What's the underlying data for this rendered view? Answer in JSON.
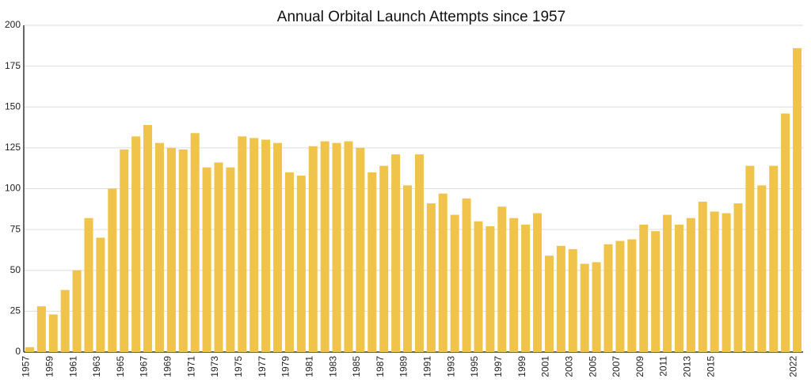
{
  "chart_data": {
    "type": "bar",
    "title": "Annual Orbital Launch Attempts since 1957",
    "categories": [
      "1957",
      null,
      "1959",
      null,
      "1961",
      null,
      "1963",
      null,
      "1965",
      null,
      "1967",
      null,
      "1969",
      null,
      "1971",
      null,
      "1973",
      null,
      "1975",
      null,
      "1977",
      null,
      "1979",
      null,
      "1981",
      null,
      "1983",
      null,
      "1985",
      null,
      "1987",
      null,
      "1989",
      null,
      "1991",
      null,
      "1993",
      null,
      "1995",
      null,
      "1997",
      null,
      "1999",
      null,
      "2001",
      null,
      "2003",
      null,
      "2005",
      null,
      "2007",
      null,
      "2009",
      null,
      "2011",
      null,
      "2013",
      null,
      "2015",
      null,
      null,
      null,
      null,
      null,
      null,
      "2022"
    ],
    "values": [
      3,
      28,
      23,
      38,
      50,
      82,
      70,
      100,
      124,
      132,
      139,
      128,
      125,
      124,
      134,
      113,
      116,
      113,
      132,
      131,
      130,
      128,
      110,
      108,
      126,
      129,
      128,
      129,
      125,
      110,
      114,
      121,
      102,
      121,
      91,
      97,
      84,
      94,
      80,
      77,
      89,
      82,
      78,
      85,
      59,
      65,
      63,
      54,
      55,
      66,
      68,
      69,
      78,
      74,
      84,
      78,
      82,
      92,
      86,
      85,
      91,
      114,
      102,
      114,
      146,
      186
    ],
    "color": "#f0c34a",
    "ylim": [
      0,
      200
    ],
    "yticks": [
      0,
      25,
      50,
      75,
      100,
      125,
      150,
      175,
      200
    ],
    "grid": true
  }
}
